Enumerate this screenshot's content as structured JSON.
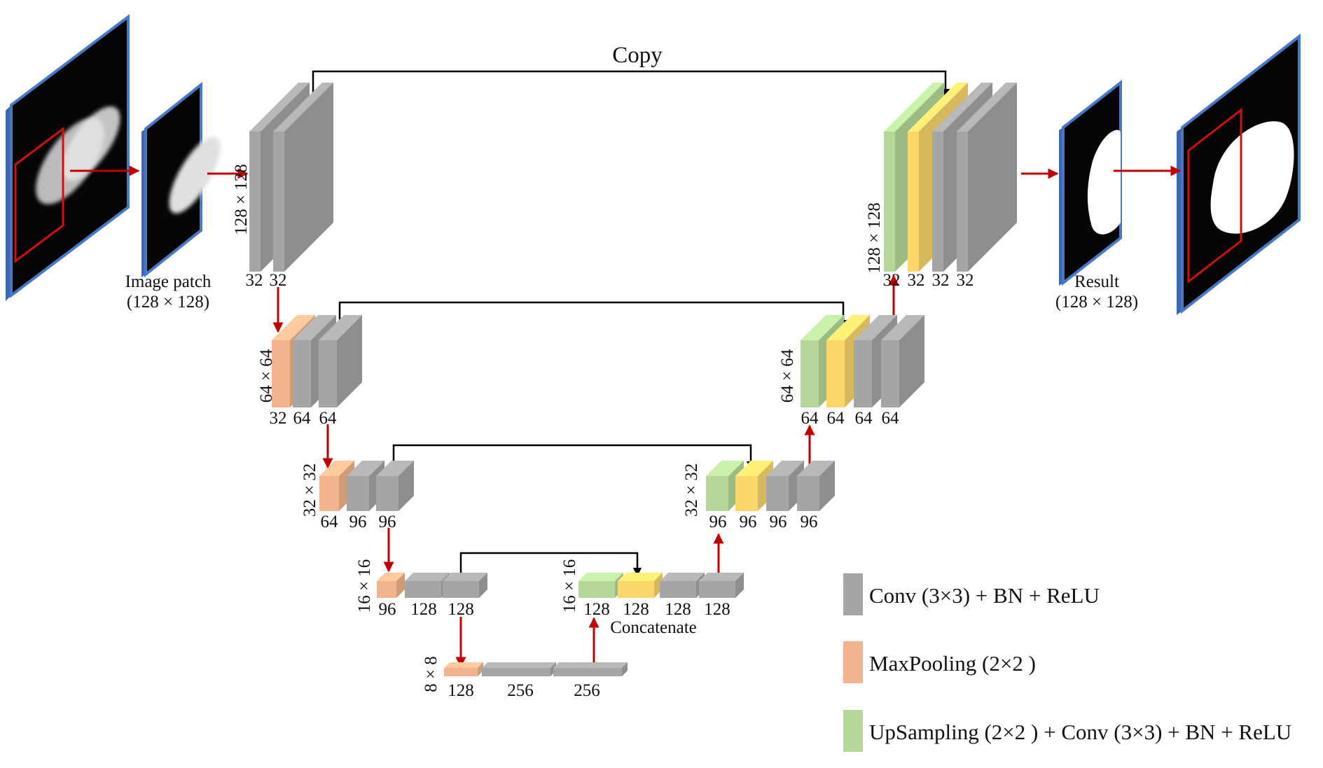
{
  "top_label": "Copy",
  "concat_label": "Concatenate",
  "input_caption": {
    "line1": "Image patch",
    "line2": "(128 × 128)"
  },
  "result_caption": {
    "line1": "Result",
    "line2": "(128 × 128)"
  },
  "levels": {
    "l1": {
      "size": "128 × 128",
      "enc": [
        "32",
        "32"
      ],
      "dec": [
        "32",
        "32",
        "32",
        "32"
      ]
    },
    "l2": {
      "size": "64 × 64",
      "enc": [
        "32",
        "64",
        "64"
      ],
      "dec": [
        "64",
        "64",
        "64",
        "64"
      ]
    },
    "l3": {
      "size": "32 × 32",
      "enc": [
        "64",
        "96",
        "96"
      ],
      "dec": [
        "96",
        "96",
        "96",
        "96"
      ]
    },
    "l4": {
      "size": "16 × 16",
      "enc": [
        "96",
        "128",
        "128"
      ],
      "dec": [
        "128",
        "128",
        "128",
        "128"
      ]
    },
    "l5": {
      "size": "8 × 8",
      "enc": [
        "128",
        "256",
        "256"
      ]
    }
  },
  "legend": [
    {
      "label": "Conv (3×3) + BN + ReLU",
      "color": "#a5a5a5"
    },
    {
      "label": "MaxPooling (2×2 )",
      "color": "#f2b48c"
    },
    {
      "label": "UpSampling (2×2 ) + Conv (3×3) + BN + ReLU",
      "color": "#b5d89a"
    }
  ],
  "colors": {
    "conv": "#a5a5a5",
    "pool": "#f2b48c",
    "up": "#b5d89a",
    "concat": "#f9d76b",
    "frame": "#4a78c8",
    "flow_arrow": "#c00000",
    "skip_arrow": "#000000"
  }
}
